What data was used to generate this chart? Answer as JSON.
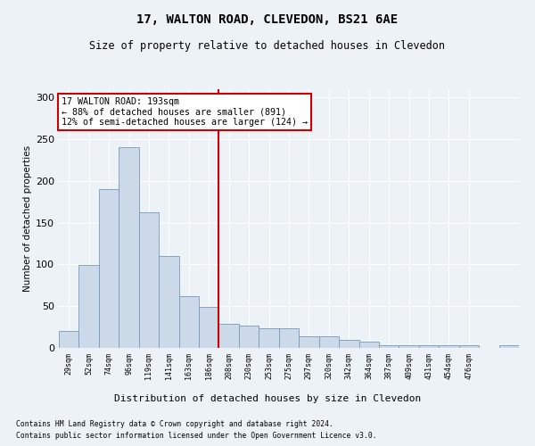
{
  "title": "17, WALTON ROAD, CLEVEDON, BS21 6AE",
  "subtitle": "Size of property relative to detached houses in Clevedon",
  "xlabel": "Distribution of detached houses by size in Clevedon",
  "ylabel": "Number of detached properties",
  "bar_values": [
    20,
    99,
    190,
    241,
    163,
    110,
    62,
    49,
    29,
    27,
    23,
    23,
    14,
    14,
    10,
    8,
    3,
    3,
    3,
    3,
    3,
    0,
    3
  ],
  "bar_labels": [
    "29sqm",
    "52sqm",
    "74sqm",
    "96sqm",
    "119sqm",
    "141sqm",
    "163sqm",
    "186sqm",
    "208sqm",
    "230sqm",
    "253sqm",
    "275sqm",
    "297sqm",
    "320sqm",
    "342sqm",
    "364sqm",
    "387sqm",
    "409sqm",
    "431sqm",
    "454sqm",
    "476sqm",
    "",
    ""
  ],
  "bar_color": "#ccd9e8",
  "bar_edge_color": "#7799bb",
  "vline_x": 7.5,
  "vline_color": "#cc0000",
  "annotation_text": "17 WALTON ROAD: 193sqm\n← 88% of detached houses are smaller (891)\n12% of semi-detached houses are larger (124) →",
  "annotation_box_edge": "#cc0000",
  "ylim": [
    0,
    310
  ],
  "yticks": [
    0,
    50,
    100,
    150,
    200,
    250,
    300
  ],
  "footer_line1": "Contains HM Land Registry data © Crown copyright and database right 2024.",
  "footer_line2": "Contains public sector information licensed under the Open Government Licence v3.0.",
  "bg_color": "#edf2f7",
  "grid_color": "#ffffff"
}
